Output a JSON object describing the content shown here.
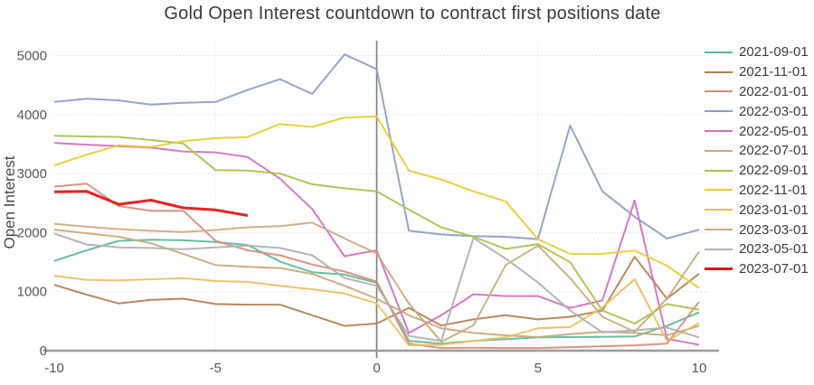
{
  "chart_data": {
    "type": "line",
    "title": "Gold Open Interest countdown to contract first positions date",
    "xlabel": "",
    "ylabel": "Open Interest",
    "xlim": [
      -10,
      10
    ],
    "ylim": [
      0,
      5000
    ],
    "x_ticks": [
      -10,
      -5,
      0,
      5,
      10
    ],
    "y_ticks": [
      0,
      1000,
      2000,
      3000,
      4000,
      5000
    ],
    "x_gridlines": [
      -5,
      5
    ],
    "grid": true,
    "legend_position": "right",
    "zero_lines": {
      "vertical_at_x": 0,
      "horizontal_at_y": 0
    },
    "x": [
      -10,
      -9,
      -8,
      -7,
      -6,
      -5,
      -4,
      -3,
      -2,
      -1,
      0,
      1,
      2,
      3,
      4,
      5,
      6,
      7,
      8,
      9,
      10
    ],
    "series": [
      {
        "name": "2021-09-01",
        "color": "#5cb89a",
        "width": 2,
        "values": [
          1520,
          1700,
          1860,
          1880,
          1870,
          1840,
          1790,
          1510,
          1330,
          1290,
          1150,
          165,
          120,
          165,
          195,
          225,
          230,
          235,
          240,
          420,
          650
        ]
      },
      {
        "name": "2021-11-01",
        "color": "#b5804f",
        "width": 2,
        "values": [
          1115,
          950,
          800,
          860,
          880,
          790,
          780,
          780,
          600,
          420,
          460,
          725,
          425,
          530,
          600,
          530,
          575,
          680,
          1590,
          880,
          1305
        ]
      },
      {
        "name": "2022-01-01",
        "color": "#d98b7a",
        "width": 2,
        "values": [
          2780,
          2830,
          2450,
          2370,
          2370,
          1860,
          1700,
          1615,
          1460,
          1340,
          1170,
          120,
          45,
          50,
          45,
          45,
          60,
          75,
          90,
          120,
          830
        ]
      },
      {
        "name": "2022-03-01",
        "color": "#8d9cc9",
        "width": 2,
        "values": [
          4215,
          4270,
          4240,
          4170,
          4200,
          4215,
          4420,
          4600,
          4350,
          5020,
          4770,
          2030,
          1970,
          1940,
          1930,
          1890,
          3815,
          2700,
          2270,
          1900,
          2050
        ]
      },
      {
        "name": "2022-05-01",
        "color": "#d36fc0",
        "width": 2,
        "values": [
          3520,
          3490,
          3465,
          3440,
          3375,
          3360,
          3280,
          2915,
          2400,
          1600,
          1700,
          300,
          600,
          955,
          925,
          925,
          725,
          850,
          2545,
          200,
          100
        ]
      },
      {
        "name": "2022-07-01",
        "color": "#c7a97c",
        "width": 2,
        "values": [
          2050,
          1990,
          1930,
          1820,
          1640,
          1450,
          1420,
          1400,
          1300,
          1100,
          880,
          600,
          380,
          300,
          260,
          230,
          280,
          320,
          300,
          260,
          420
        ]
      },
      {
        "name": "2022-09-01",
        "color": "#a9c24b",
        "width": 2,
        "values": [
          3640,
          3630,
          3620,
          3570,
          3510,
          3060,
          3050,
          3000,
          2820,
          2750,
          2700,
          2390,
          2090,
          1930,
          1725,
          1805,
          1500,
          680,
          460,
          790,
          695
        ]
      },
      {
        "name": "2022-11-01",
        "color": "#e6cd2e",
        "width": 2,
        "values": [
          3140,
          3320,
          3480,
          3450,
          3550,
          3600,
          3620,
          3840,
          3790,
          3950,
          3970,
          3050,
          2900,
          2700,
          2530,
          1890,
          1640,
          1640,
          1695,
          1440,
          1060
        ]
      },
      {
        "name": "2023-01-01",
        "color": "#ecbf5e",
        "width": 2,
        "values": [
          1270,
          1200,
          1190,
          1210,
          1230,
          1180,
          1165,
          1100,
          1040,
          970,
          800,
          90,
          100,
          165,
          225,
          380,
          400,
          730,
          1210,
          165,
          470
        ]
      },
      {
        "name": "2023-03-01",
        "color": "#c9ab7e",
        "width": 2,
        "values": [
          2150,
          2100,
          2060,
          2030,
          2010,
          2045,
          2090,
          2110,
          2170,
          1900,
          1650,
          800,
          150,
          430,
          1450,
          1780,
          1230,
          575,
          320,
          880,
          1680
        ]
      },
      {
        "name": "2023-05-01",
        "color": "#b0b0b0",
        "width": 2,
        "values": [
          1985,
          1800,
          1750,
          1740,
          1720,
          1750,
          1780,
          1740,
          1615,
          1230,
          1100,
          250,
          165,
          1910,
          1560,
          1155,
          680,
          310,
          345,
          390,
          225
        ]
      },
      {
        "name": "2023-07-01",
        "color": "#e11212",
        "width": 3,
        "values": [
          2690,
          2700,
          2480,
          2550,
          2420,
          2385,
          2290,
          null,
          null,
          null,
          null,
          null,
          null,
          null,
          null,
          null,
          null,
          null,
          null,
          null,
          null
        ]
      }
    ]
  }
}
